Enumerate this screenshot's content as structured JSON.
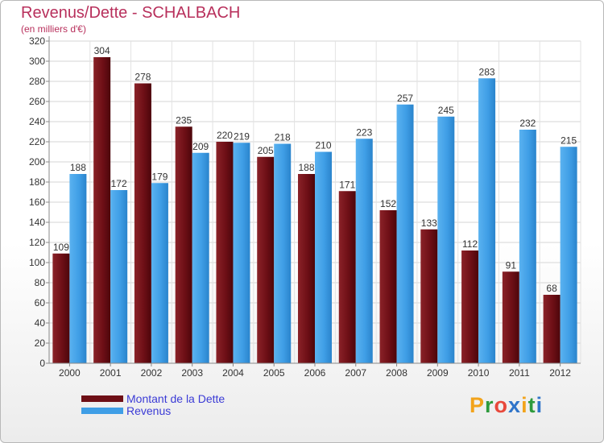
{
  "colors": {
    "dette": "#6e0f16",
    "revenus": "#3f9ee6",
    "title": "#b8305c",
    "legend_text": "#3b3bd6"
  },
  "logo": {
    "text": "Proxiti",
    "letters": [
      {
        "ch": "P",
        "color": "#f2a31b"
      },
      {
        "ch": "r",
        "color": "#2e9a3c"
      },
      {
        "ch": "o",
        "color": "#e8483b"
      },
      {
        "ch": "x",
        "color": "#2f74c9"
      },
      {
        "ch": "i",
        "color": "#f2a31b"
      },
      {
        "ch": "t",
        "color": "#2e9a3c"
      },
      {
        "ch": "i",
        "color": "#2f74c9"
      }
    ]
  },
  "chart_data": {
    "type": "bar",
    "title": "Revenus/Dette - SCHALBACH",
    "subtitle": "(en milliers d'€)",
    "categories": [
      "2000",
      "2001",
      "2002",
      "2003",
      "2004",
      "2005",
      "2006",
      "2007",
      "2008",
      "2009",
      "2010",
      "2011",
      "2012"
    ],
    "series": [
      {
        "name": "Montant de la Dette",
        "values": [
          109,
          304,
          278,
          235,
          220,
          205,
          188,
          171,
          152,
          133,
          112,
          91,
          68
        ]
      },
      {
        "name": "Revenus",
        "values": [
          188,
          172,
          179,
          209,
          219,
          218,
          210,
          223,
          257,
          245,
          283,
          232,
          215
        ]
      }
    ],
    "ylim": [
      0,
      320
    ],
    "yticks": [
      0,
      20,
      40,
      60,
      80,
      100,
      120,
      140,
      160,
      180,
      200,
      220,
      240,
      260,
      280,
      300,
      320
    ],
    "grid": true,
    "legend": "bottom-left"
  }
}
